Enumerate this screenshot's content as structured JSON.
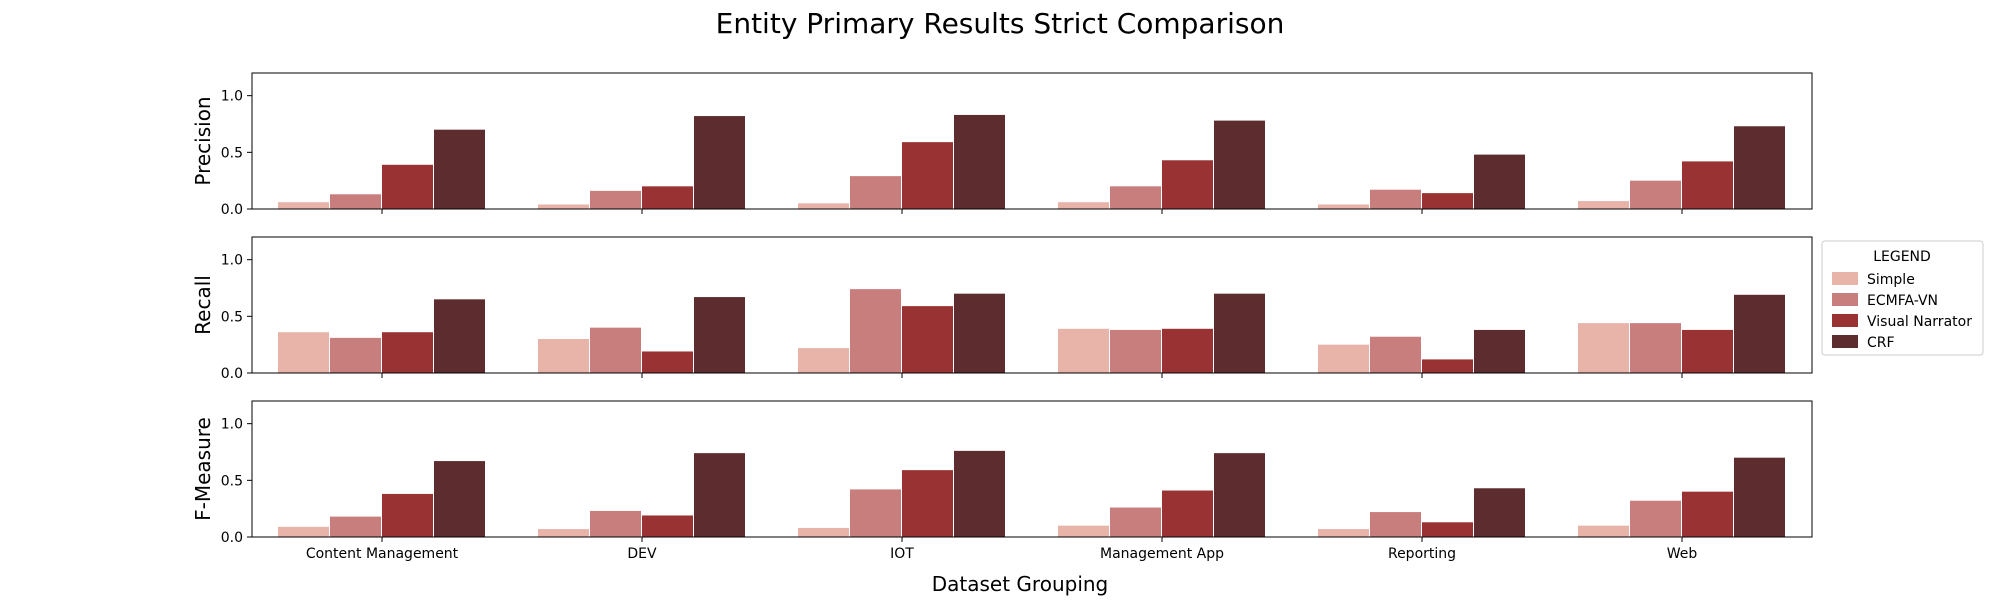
{
  "chart_data": {
    "type": "bar",
    "title": "Entity Primary Results Strict Comparison",
    "xlabel": "Dataset Grouping",
    "categories": [
      "Content Management",
      "DEV",
      "IOT",
      "Management App",
      "Reporting",
      "Web"
    ],
    "legend": {
      "title": "LEGEND",
      "placement": "right",
      "entries": [
        "Simple",
        "ECMFA-VN",
        "Visual Narrator",
        "CRF"
      ]
    },
    "colors": {
      "Simple": "#e8b3a8",
      "ECMFA-VN": "#c97e7e",
      "Visual Narrator": "#993333",
      "CRF": "#5c2c2e"
    },
    "ylim": [
      0,
      1.2
    ],
    "yticks": [
      "0.0",
      "0.5",
      "1.0"
    ],
    "grid": false,
    "panels": [
      {
        "ylabel": "Precision",
        "series": [
          {
            "name": "Simple",
            "values": [
              0.06,
              0.04,
              0.05,
              0.06,
              0.04,
              0.07
            ]
          },
          {
            "name": "ECMFA-VN",
            "values": [
              0.13,
              0.16,
              0.29,
              0.2,
              0.17,
              0.25
            ]
          },
          {
            "name": "Visual Narrator",
            "values": [
              0.39,
              0.2,
              0.59,
              0.43,
              0.14,
              0.42
            ]
          },
          {
            "name": "CRF",
            "values": [
              0.7,
              0.82,
              0.83,
              0.78,
              0.48,
              0.73
            ]
          }
        ]
      },
      {
        "ylabel": "Recall",
        "series": [
          {
            "name": "Simple",
            "values": [
              0.36,
              0.3,
              0.22,
              0.39,
              0.25,
              0.44
            ]
          },
          {
            "name": "ECMFA-VN",
            "values": [
              0.31,
              0.4,
              0.74,
              0.38,
              0.32,
              0.44
            ]
          },
          {
            "name": "Visual Narrator",
            "values": [
              0.36,
              0.19,
              0.59,
              0.39,
              0.12,
              0.38
            ]
          },
          {
            "name": "CRF",
            "values": [
              0.65,
              0.67,
              0.7,
              0.7,
              0.38,
              0.69
            ]
          }
        ]
      },
      {
        "ylabel": "F-Measure",
        "series": [
          {
            "name": "Simple",
            "values": [
              0.09,
              0.07,
              0.08,
              0.1,
              0.07,
              0.1
            ]
          },
          {
            "name": "ECMFA-VN",
            "values": [
              0.18,
              0.23,
              0.42,
              0.26,
              0.22,
              0.32
            ]
          },
          {
            "name": "Visual Narrator",
            "values": [
              0.38,
              0.19,
              0.59,
              0.41,
              0.13,
              0.4
            ]
          },
          {
            "name": "CRF",
            "values": [
              0.67,
              0.74,
              0.76,
              0.74,
              0.43,
              0.7
            ]
          }
        ]
      }
    ]
  }
}
